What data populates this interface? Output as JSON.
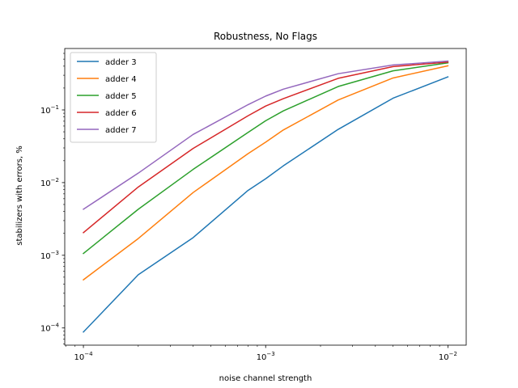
{
  "chart_data": {
    "type": "line",
    "title": "Robustness, No Flags",
    "xlabel": "noise channel strength",
    "ylabel": "stabilizers with errors, %",
    "xscale": "log",
    "yscale": "log",
    "xlim": [
      7.9e-05,
      0.0126
    ],
    "ylim": [
      5.8e-05,
      0.7
    ],
    "x": [
      0.0001,
      0.0002,
      0.0004,
      0.0008,
      0.001,
      0.00125,
      0.0025,
      0.005,
      0.01
    ],
    "xticks": [
      {
        "value": 0.0001,
        "base": "10",
        "exp": "−4"
      },
      {
        "value": 0.001,
        "base": "10",
        "exp": "−3"
      },
      {
        "value": 0.01,
        "base": "10",
        "exp": "−2"
      }
    ],
    "yticks": [
      {
        "value": 0.0001,
        "base": "10",
        "exp": "−4"
      },
      {
        "value": 0.001,
        "base": "10",
        "exp": "−3"
      },
      {
        "value": 0.01,
        "base": "10",
        "exp": "−2"
      },
      {
        "value": 0.1,
        "base": "10",
        "exp": "−1"
      }
    ],
    "grid": false,
    "legend_position": "top-left",
    "series": [
      {
        "name": "adder 3",
        "color": "#1f77b4",
        "values": [
          8.8e-05,
          0.00054,
          0.00175,
          0.0078,
          0.0113,
          0.017,
          0.054,
          0.145,
          0.285
        ]
      },
      {
        "name": "adder 4",
        "color": "#ff7f0e",
        "values": [
          0.00046,
          0.0017,
          0.0073,
          0.025,
          0.036,
          0.053,
          0.137,
          0.275,
          0.405
        ]
      },
      {
        "name": "adder 5",
        "color": "#2ca02c",
        "values": [
          0.00106,
          0.0043,
          0.0152,
          0.049,
          0.071,
          0.097,
          0.21,
          0.345,
          0.445
        ]
      },
      {
        "name": "adder 6",
        "color": "#d62728",
        "values": [
          0.00205,
          0.0087,
          0.0295,
          0.083,
          0.113,
          0.143,
          0.272,
          0.395,
          0.455
        ]
      },
      {
        "name": "adder 7",
        "color": "#9467bd",
        "values": [
          0.0043,
          0.0135,
          0.046,
          0.118,
          0.155,
          0.193,
          0.315,
          0.415,
          0.47
        ]
      }
    ]
  }
}
